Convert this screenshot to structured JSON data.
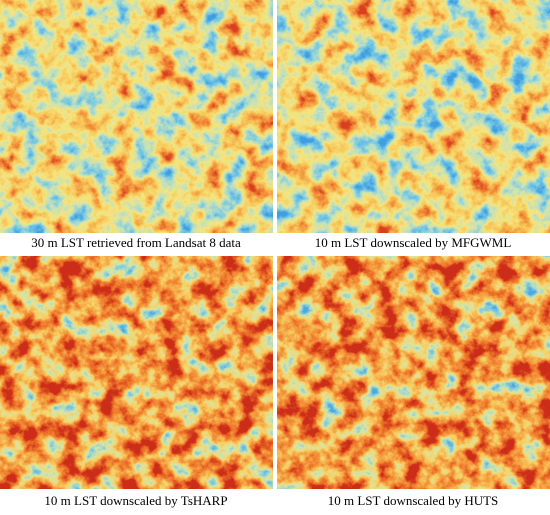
{
  "panels": [
    {
      "caption": "30 m LST retrieved from Landsat 8 data"
    },
    {
      "caption": "10 m LST downscaled by MFGWML"
    },
    {
      "caption": "10 m LST downscaled by TsHARP"
    },
    {
      "caption": "10 m LST downscaled by HUTS"
    }
  ]
}
